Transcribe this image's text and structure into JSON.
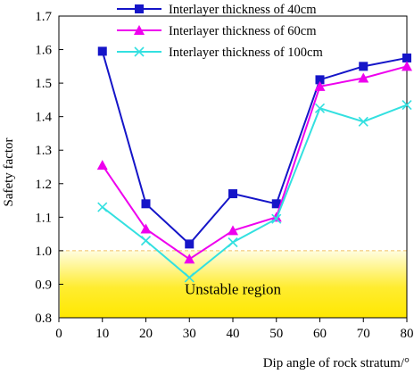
{
  "chart_data": {
    "type": "line",
    "xlabel": "Dip angle of rock stratum/°",
    "ylabel": "Safety factor",
    "x": [
      10,
      20,
      30,
      40,
      50,
      60,
      70,
      80
    ],
    "xlim": [
      0,
      80
    ],
    "ylim": [
      0.8,
      1.7
    ],
    "xticks": [
      "0",
      "10",
      "20",
      "30",
      "40",
      "50",
      "60",
      "70",
      "80"
    ],
    "yticks": [
      "0.8",
      "0.9",
      "1.0",
      "1.1",
      "1.2",
      "1.3",
      "1.4",
      "1.5",
      "1.6",
      "1.7"
    ],
    "grid": false,
    "legend_position": "top-right",
    "series": [
      {
        "name": "Interlayer thickness of 40cm",
        "color": "#1515c8",
        "marker": "square",
        "values": [
          1.595,
          1.14,
          1.02,
          1.17,
          1.14,
          1.51,
          1.55,
          1.575
        ]
      },
      {
        "name": "Interlayer thickness of 60cm",
        "color": "#ee00ee",
        "marker": "triangle",
        "values": [
          1.255,
          1.065,
          0.975,
          1.06,
          1.1,
          1.49,
          1.515,
          1.55
        ]
      },
      {
        "name": "Interlayer thickness of 100cm",
        "color": "#33e0e0",
        "marker": "x",
        "values": [
          1.13,
          1.03,
          0.92,
          1.025,
          1.095,
          1.425,
          1.385,
          1.435
        ]
      }
    ],
    "unstable_region": {
      "label": "Unstable region",
      "y_range": [
        0.8,
        1.0
      ],
      "colors": [
        "#fffde0",
        "#ffe800"
      ]
    }
  }
}
